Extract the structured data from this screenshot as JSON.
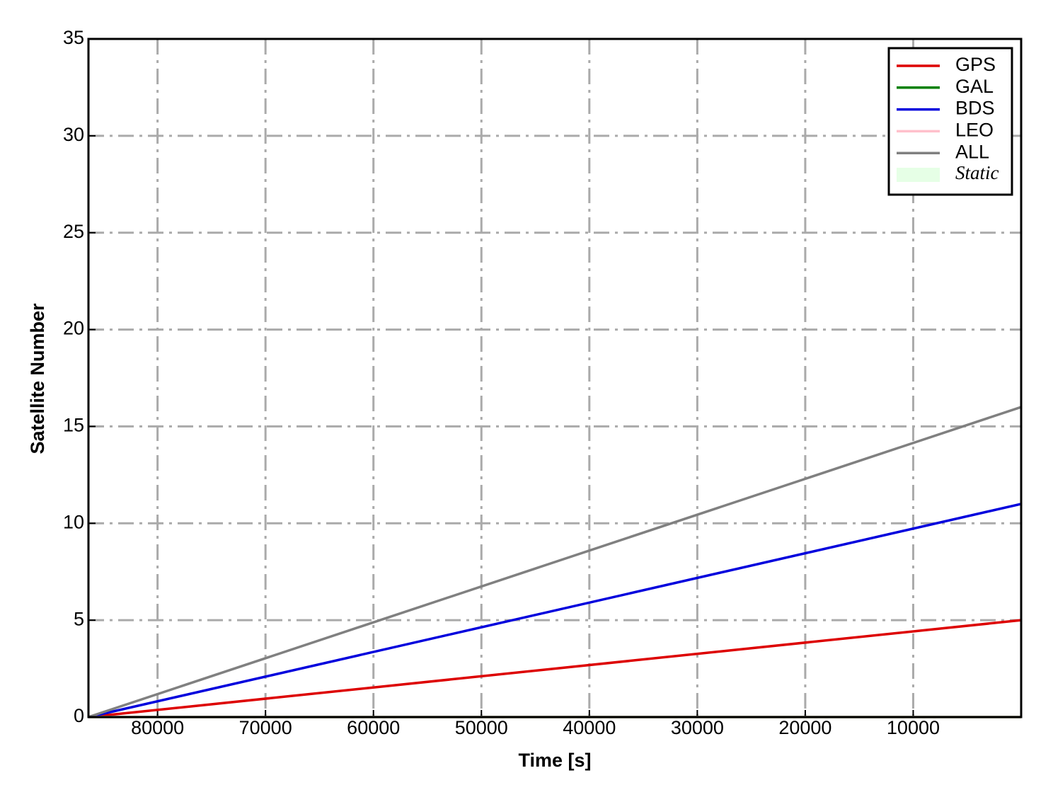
{
  "chart_data": {
    "type": "line",
    "x_label": "Time [s]",
    "y_label": "Satellite Number",
    "x": [
      86400,
      0
    ],
    "series": [
      {
        "name": "GPS",
        "color": "#dd0000",
        "values": [
          0,
          5
        ]
      },
      {
        "name": "GAL",
        "color": "#008000",
        "values": [
          0,
          0
        ]
      },
      {
        "name": "BDS",
        "color": "#0000dd",
        "values": [
          0,
          11
        ]
      },
      {
        "name": "LEO",
        "color": "#ffc0cb",
        "values": [
          0,
          0
        ]
      },
      {
        "name": "ALL",
        "color": "#808080",
        "values": [
          0,
          16
        ]
      }
    ],
    "shaded": {
      "name": "Static",
      "color": "#e6ffe6"
    },
    "xlim": [
      86400,
      0
    ],
    "xticks": [
      80000,
      70000,
      60000,
      50000,
      40000,
      30000,
      20000,
      10000
    ],
    "ylim": [
      0,
      35
    ],
    "yticks": [
      0,
      5,
      10,
      15,
      20,
      25,
      30,
      35
    ],
    "grid": true,
    "legend": "upper right"
  }
}
